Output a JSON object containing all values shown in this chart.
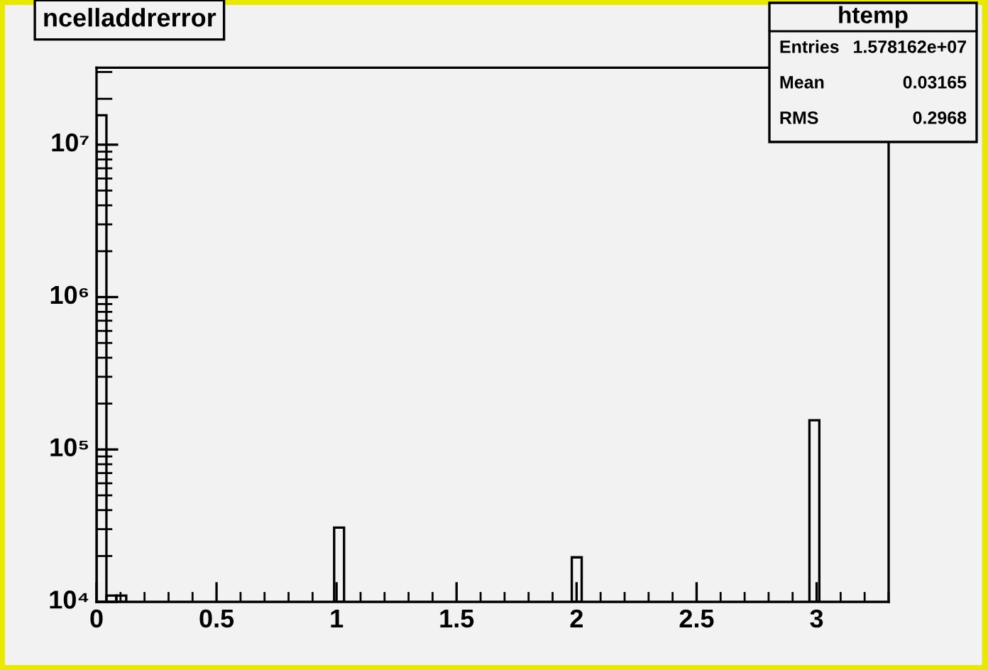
{
  "chart_data": {
    "type": "histogram",
    "title": "ncelladdrerror",
    "bins": [
      0,
      0.04125,
      0.0825,
      0.12375,
      0.165,
      0.20625,
      0.2475,
      0.28875,
      0.33,
      0.37125,
      0.4125,
      0.45375,
      0.495,
      0.53625,
      0.5775,
      0.61875,
      0.66,
      0.70125,
      0.7425,
      0.78375,
      0.825,
      0.86625,
      0.9075,
      0.94875,
      0.99,
      1.03125,
      1.0725,
      1.11375,
      1.155,
      1.19625,
      1.2375,
      1.27875,
      1.32,
      1.36125,
      1.4025,
      1.44375,
      1.485,
      1.52625,
      1.5675,
      1.60875,
      1.65,
      1.69125,
      1.7325,
      1.77375,
      1.815,
      1.85625,
      1.8975,
      1.93875,
      1.98,
      2.02125,
      2.0625,
      2.10375,
      2.145,
      2.18625,
      2.2275,
      2.26875,
      2.31,
      2.35125,
      2.3925,
      2.43375,
      2.475,
      2.51625,
      2.5575,
      2.59875,
      2.64,
      2.68125,
      2.7225,
      2.76375,
      2.805,
      2.84625,
      2.8875,
      2.92875,
      2.97,
      3.01125,
      3.0525,
      3.09375,
      3.135,
      3.17625,
      3.2175,
      3.25875,
      3.3
    ],
    "values": [
      15600000,
      11000,
      11000,
      null,
      null,
      null,
      null,
      null,
      null,
      null,
      null,
      null,
      null,
      null,
      null,
      null,
      null,
      null,
      null,
      null,
      null,
      null,
      null,
      null,
      30700,
      null,
      null,
      null,
      null,
      null,
      null,
      null,
      null,
      null,
      null,
      null,
      null,
      null,
      null,
      null,
      null,
      null,
      null,
      null,
      null,
      null,
      null,
      null,
      19600,
      null,
      null,
      null,
      null,
      null,
      null,
      null,
      null,
      null,
      null,
      null,
      null,
      null,
      null,
      null,
      null,
      null,
      null,
      null,
      null,
      null,
      null,
      null,
      155600,
      null,
      null,
      null,
      null,
      null,
      null,
      null
    ],
    "color": "#000000",
    "log": true,
    "grid": false,
    "legend": false,
    "xlim": [
      0,
      3.3
    ],
    "xticks": [
      0,
      0.5,
      1,
      1.5,
      2,
      2.5,
      3
    ],
    "ylim": [
      10000,
      32000000
    ],
    "yticks": [
      {
        "value": 10000,
        "label": "10⁴"
      },
      {
        "value": 100000,
        "label": "10⁵"
      },
      {
        "value": 1000000,
        "label": "10⁶"
      },
      {
        "value": 10000000,
        "label": "10⁷"
      }
    ],
    "annotations": [
      "htemp",
      "Entries",
      "1.578162e+07",
      "Mean",
      "0.03165",
      "RMS",
      "0.2968"
    ]
  }
}
